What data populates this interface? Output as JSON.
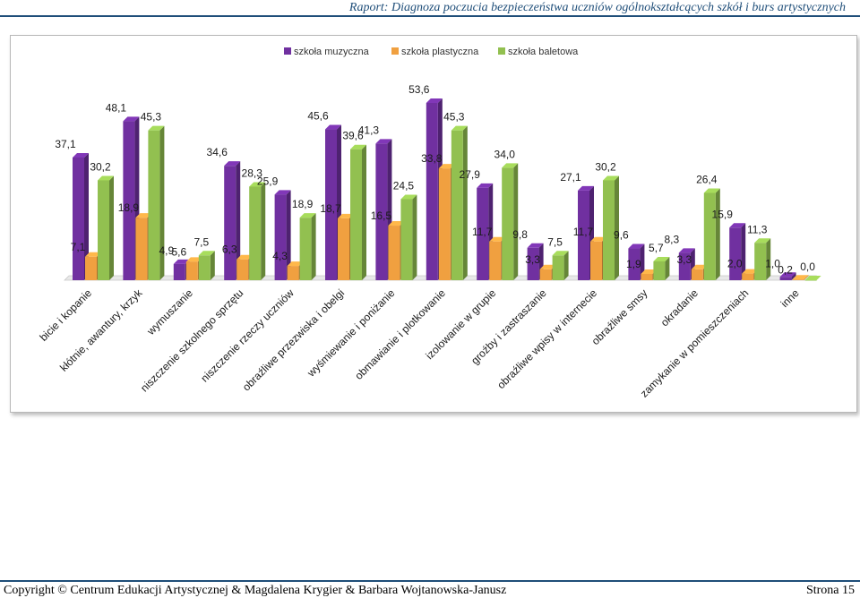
{
  "header": {
    "title": "Raport: Diagnoza poczucia bezpieczeństwa uczniów ogólnokształcących szkół i burs artystycznych"
  },
  "footer": {
    "copyright": "Copyright © Centrum Edukacji Artystycznej & Magdalena Krygier & Barbara Wojtanowska-Janusz",
    "page": "Strona 15"
  },
  "chart_data": {
    "type": "bar",
    "title": "",
    "xlabel": "",
    "ylabel": "",
    "ylim": [
      0,
      60
    ],
    "grid": false,
    "legend_position": "top",
    "categories": [
      "bicie i kopanie",
      "kłótnie, awantury, krzyk",
      "wymuszanie",
      "niszczenie szkolnego sprzętu",
      "niszczenie rzeczy uczniów",
      "obraźliwe przezwiska i obelgi",
      "wyśmiewanie i poniżanie",
      "obmawianie i plotkowanie",
      "izolowanie w grupie",
      "groźby i zastraszanie",
      "obraźliwe wpisy w internecie",
      "obraźliwe smsy",
      "okradanie",
      "zamykanie w pomieszczeniach",
      "inne"
    ],
    "series": [
      {
        "name": "szkoła muzyczna",
        "color": "#7030a0",
        "values": [
          37.1,
          48.1,
          4.9,
          34.6,
          25.9,
          45.6,
          41.3,
          53.6,
          27.9,
          9.8,
          27.1,
          9.6,
          8.3,
          15.9,
          1.0
        ]
      },
      {
        "name": "szkoła plastyczna",
        "color": "#f0a040",
        "values": [
          7.1,
          18.9,
          5.6,
          6.3,
          4.3,
          18.7,
          16.5,
          33.8,
          11.7,
          3.3,
          11.7,
          1.9,
          3.3,
          2.0,
          0.2
        ]
      },
      {
        "name": "szkoła baletowa",
        "color": "#92c050",
        "values": [
          30.2,
          45.3,
          7.5,
          28.3,
          18.9,
          39.6,
          24.5,
          45.3,
          34.0,
          7.5,
          30.2,
          5.7,
          26.4,
          11.3,
          0.0
        ]
      }
    ]
  }
}
